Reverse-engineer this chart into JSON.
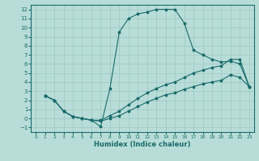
{
  "xlabel": "Humidex (Indice chaleur)",
  "xlim": [
    -0.5,
    23.5
  ],
  "ylim": [
    -1.5,
    12.5
  ],
  "yticks": [
    -1,
    0,
    1,
    2,
    3,
    4,
    5,
    6,
    7,
    8,
    9,
    10,
    11,
    12
  ],
  "xticks": [
    0,
    1,
    2,
    3,
    4,
    5,
    6,
    7,
    8,
    9,
    10,
    11,
    12,
    13,
    14,
    15,
    16,
    17,
    18,
    19,
    20,
    21,
    22,
    23
  ],
  "bg_color": "#b8ddd8",
  "grid_color": "#9cc8c2",
  "line_color": "#1a6b6b",
  "line1_x": [
    1,
    2,
    3,
    4,
    5,
    6,
    7,
    8,
    9,
    10,
    11,
    12,
    13,
    14,
    15,
    16,
    17,
    18,
    19,
    20,
    21,
    22,
    23
  ],
  "line1_y": [
    2.5,
    2.0,
    0.8,
    0.2,
    0.0,
    -0.2,
    -0.9,
    3.3,
    9.5,
    11.0,
    11.5,
    11.7,
    12.0,
    12.0,
    12.0,
    10.5,
    7.5,
    7.0,
    6.5,
    6.2,
    6.3,
    6.0,
    3.5
  ],
  "line2_x": [
    1,
    2,
    3,
    4,
    5,
    6,
    7,
    8,
    9,
    10,
    11,
    12,
    13,
    14,
    15,
    16,
    17,
    18,
    19,
    20,
    21,
    22,
    23
  ],
  "line2_y": [
    2.5,
    2.0,
    0.8,
    0.2,
    0.0,
    -0.2,
    -0.2,
    0.3,
    0.8,
    1.5,
    2.2,
    2.8,
    3.3,
    3.7,
    4.0,
    4.5,
    5.0,
    5.3,
    5.6,
    5.8,
    6.5,
    6.5,
    3.5
  ],
  "line3_x": [
    1,
    2,
    3,
    4,
    5,
    6,
    7,
    8,
    9,
    10,
    11,
    12,
    13,
    14,
    15,
    16,
    17,
    18,
    19,
    20,
    21,
    22,
    23
  ],
  "line3_y": [
    2.5,
    2.0,
    0.8,
    0.2,
    0.0,
    -0.2,
    -0.3,
    0.0,
    0.3,
    0.8,
    1.3,
    1.8,
    2.2,
    2.6,
    2.8,
    3.2,
    3.5,
    3.8,
    4.0,
    4.2,
    4.8,
    4.5,
    3.5
  ]
}
